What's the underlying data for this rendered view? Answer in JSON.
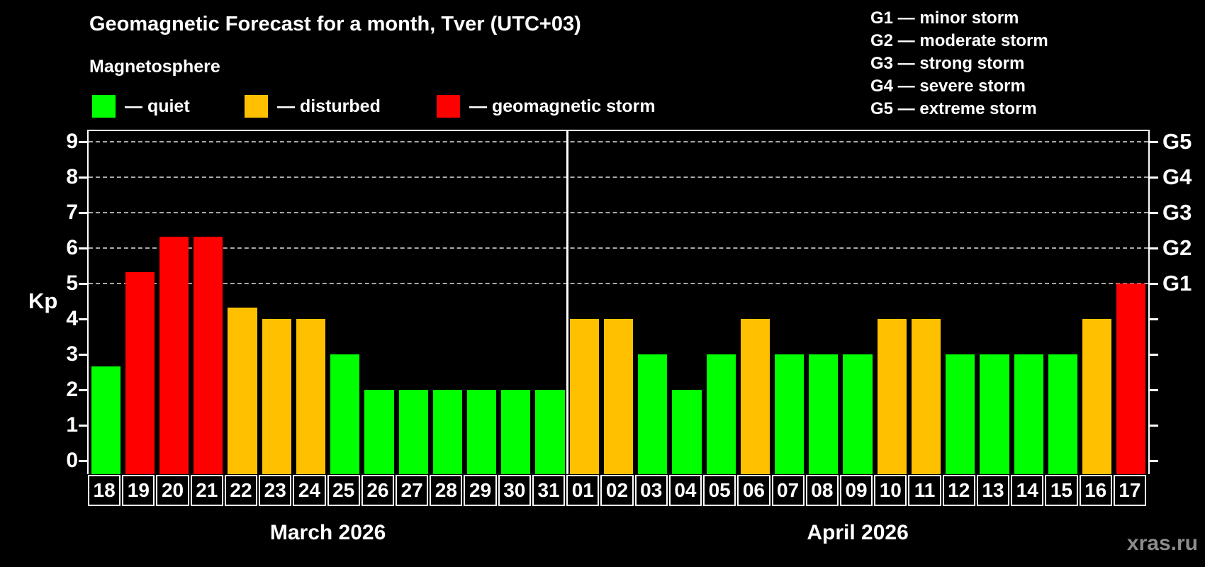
{
  "title": "Geomagnetic Forecast for a month, Tver (UTC+03)",
  "subtitle": "Magnetosphere",
  "legend": {
    "items": [
      {
        "key": "quiet",
        "label": "— quiet",
        "color": "#00ff00"
      },
      {
        "key": "disturbed",
        "label": "— disturbed",
        "color": "#ffc000"
      },
      {
        "key": "storm",
        "label": "— geomagnetic storm",
        "color": "#ff0000"
      }
    ]
  },
  "storm_scale_legend": [
    "G1 — minor storm",
    "G2 — moderate storm",
    "G3 — strong storm",
    "G4 — severe storm",
    "G5 — extreme storm"
  ],
  "watermark": "xras.ru",
  "chart_data": {
    "type": "bar",
    "title": "Geomagnetic Forecast for a month, Tver (UTC+03)",
    "ylabel": "Kp",
    "ylim": [
      -0.38,
      9.3
    ],
    "y_ticks": [
      0,
      1,
      2,
      3,
      4,
      5,
      6,
      7,
      8,
      9
    ],
    "grid_values": [
      5,
      6,
      7,
      8,
      9
    ],
    "grid_on": true,
    "legend_position": "top",
    "right_axis": [
      {
        "value": 5,
        "label": "G1"
      },
      {
        "value": 6,
        "label": "G2"
      },
      {
        "value": 7,
        "label": "G3"
      },
      {
        "value": 8,
        "label": "G4"
      },
      {
        "value": 9,
        "label": "G5"
      }
    ],
    "months": [
      {
        "label": "March 2026",
        "days": 14
      },
      {
        "label": "April 2026",
        "days": 17
      }
    ],
    "categories": [
      "18",
      "19",
      "20",
      "21",
      "22",
      "23",
      "24",
      "25",
      "26",
      "27",
      "28",
      "29",
      "30",
      "31",
      "01",
      "02",
      "03",
      "04",
      "05",
      "06",
      "07",
      "08",
      "09",
      "10",
      "11",
      "12",
      "13",
      "14",
      "15",
      "16",
      "17"
    ],
    "values": [
      2.67,
      5.33,
      6.33,
      6.33,
      4.33,
      4,
      4,
      3,
      2,
      2,
      2,
      2,
      2,
      2,
      4,
      4,
      3,
      2,
      3,
      4,
      3,
      3,
      3,
      4,
      4,
      3,
      3,
      3,
      3,
      4,
      5
    ],
    "statuses": [
      "quiet",
      "storm",
      "storm",
      "storm",
      "disturbed",
      "disturbed",
      "disturbed",
      "quiet",
      "quiet",
      "quiet",
      "quiet",
      "quiet",
      "quiet",
      "quiet",
      "disturbed",
      "disturbed",
      "quiet",
      "quiet",
      "quiet",
      "disturbed",
      "quiet",
      "quiet",
      "quiet",
      "disturbed",
      "disturbed",
      "quiet",
      "quiet",
      "quiet",
      "quiet",
      "disturbed",
      "storm"
    ],
    "status_colors": {
      "quiet": "#00ff00",
      "disturbed": "#ffc000",
      "storm": "#ff0000"
    }
  }
}
